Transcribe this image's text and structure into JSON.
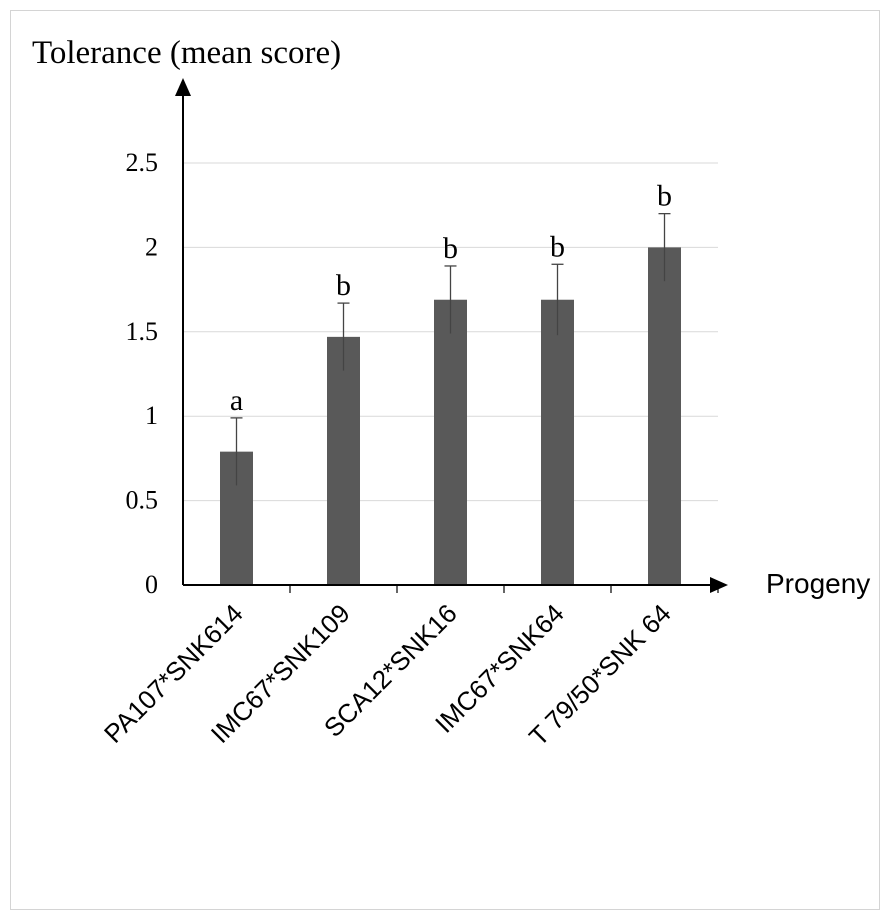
{
  "chart_data": {
    "type": "bar",
    "ylabel": "Tolerance (mean score)",
    "xlabel": "Progeny",
    "categories": [
      "PA107*SNK614",
      "IMC67*SNK109",
      "SCA12*SNK16",
      "IMC67*SNK64",
      "T 79/50*SNK 64"
    ],
    "values": [
      0.79,
      1.47,
      1.69,
      1.69,
      2.0
    ],
    "errors": [
      0.2,
      0.2,
      0.2,
      0.21,
      0.2
    ],
    "significance_letters": [
      "a",
      "b",
      "b",
      "b",
      "b"
    ],
    "ylim": [
      0,
      2.5
    ],
    "yticks": [
      "0",
      "0.5",
      "1",
      "1.5",
      "2",
      "2.5"
    ],
    "ytick_values": [
      0,
      0.5,
      1,
      1.5,
      2,
      2.5
    ],
    "grid": true,
    "legend": "none",
    "colors": {
      "bar": "#595959",
      "axis": "#000000",
      "grid": "#d9d9d9"
    }
  }
}
